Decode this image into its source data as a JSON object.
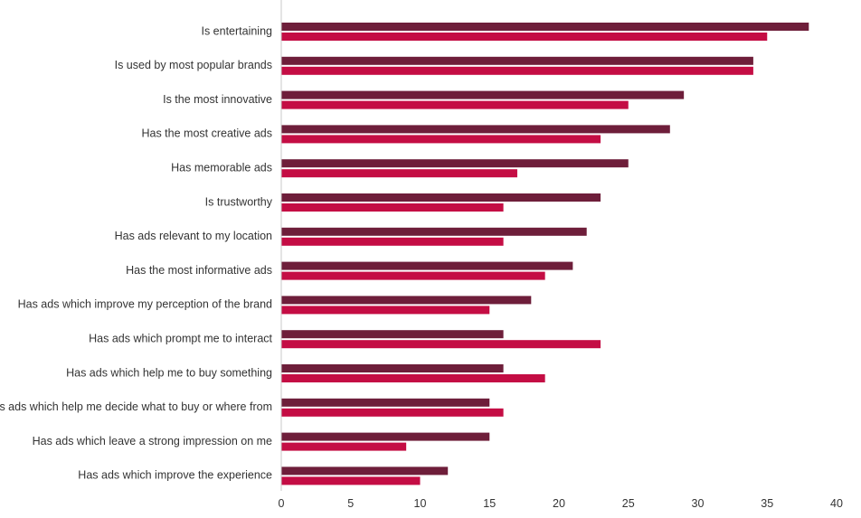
{
  "chart_data": {
    "type": "bar",
    "orientation": "horizontal",
    "categories": [
      "Is entertaining",
      "Is used by most popular brands",
      "Is the most innovative",
      "Has the most creative ads",
      "Has memorable ads",
      "Is trustworthy",
      "Has ads relevant to my location",
      "Has the most informative ads",
      "Has ads which improve my perception of the brand",
      "Has ads which prompt me to interact",
      "Has ads which help me to buy something",
      "Has ads which help me decide what to buy or where from",
      "Has ads which leave a strong impression on me",
      "Has ads which improve the experience"
    ],
    "series": [
      {
        "color": "#6e1e3a",
        "values": [
          38,
          34,
          29,
          28,
          25,
          23,
          22,
          21,
          18,
          16,
          16,
          15,
          15,
          12
        ]
      },
      {
        "color": "#c40d44",
        "values": [
          35,
          34,
          25,
          23,
          17,
          16,
          16,
          19,
          15,
          23,
          19,
          16,
          9,
          10
        ]
      }
    ],
    "xlim": [
      0,
      40
    ],
    "xticks": [
      "0",
      "5",
      "10",
      "15",
      "20",
      "25",
      "30",
      "35",
      "40"
    ],
    "title": "",
    "xlabel": "",
    "ylabel": "",
    "grid": false,
    "legend": "none"
  }
}
